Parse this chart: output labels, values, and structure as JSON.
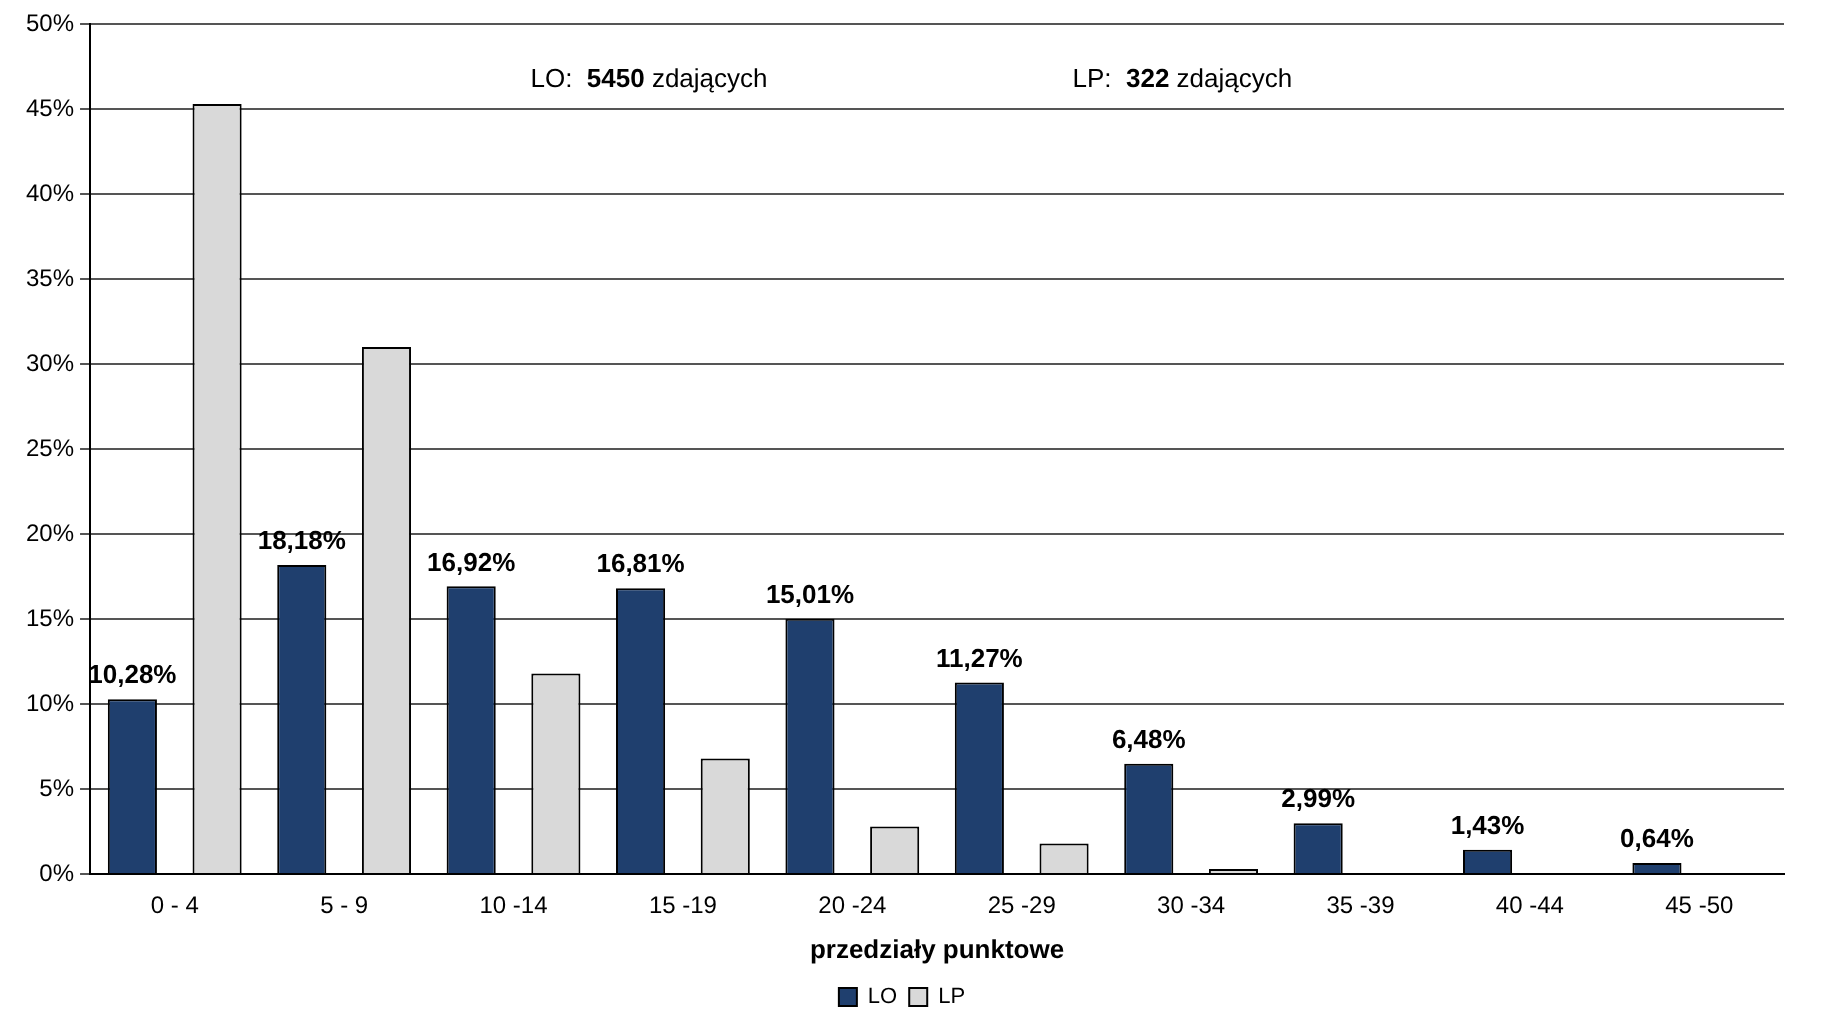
{
  "chart_data": {
    "type": "bar",
    "categories": [
      "0 - 4",
      "5 - 9",
      "10 -14",
      "15 -19",
      "20 -24",
      "25 -29",
      "30 -34",
      "35 -39",
      "40 -44",
      "45 -50"
    ],
    "series": [
      {
        "name": "LO",
        "color": "#1f3f6e",
        "values": [
          10.28,
          18.18,
          16.92,
          16.81,
          15.01,
          11.27,
          6.48,
          2.99,
          1.43,
          0.64
        ],
        "value_labels": [
          "10,28%",
          "18,18%",
          "16,92%",
          "16,81%",
          "15,01%",
          "11,27%",
          "6,48%",
          "2,99%",
          "1,43%",
          "0,64%"
        ]
      },
      {
        "name": "LP",
        "color": "#d9d9d9",
        "values": [
          45.3,
          31.0,
          11.8,
          6.8,
          2.8,
          1.8,
          0.3,
          0,
          0,
          0
        ]
      }
    ],
    "xlabel": "przedziały punktowe",
    "ylim": [
      0,
      50
    ],
    "yticks": [
      {
        "value": 0,
        "label": "0%"
      },
      {
        "value": 5,
        "label": "5%"
      },
      {
        "value": 10,
        "label": "10%"
      },
      {
        "value": 15,
        "label": "15%"
      },
      {
        "value": 20,
        "label": "20%"
      },
      {
        "value": 25,
        "label": "25%"
      },
      {
        "value": 30,
        "label": "30%"
      },
      {
        "value": 35,
        "label": "35%"
      },
      {
        "value": 40,
        "label": "40%"
      },
      {
        "value": 45,
        "label": "45%"
      },
      {
        "value": 50,
        "label": "50%"
      }
    ],
    "annotations": [
      "LO:  5450 zdających",
      "LP:  322 zdających"
    ],
    "grid": "y",
    "legend": "bottom"
  }
}
